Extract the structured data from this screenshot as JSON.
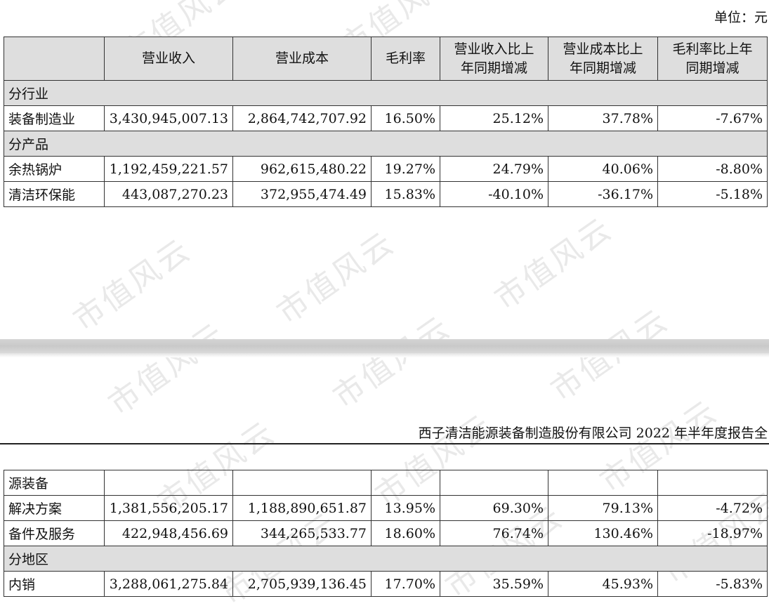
{
  "unit_label": "单位：元",
  "report_title": "西子清洁能源装备制造股份有限公司 2022 年半年度报告全",
  "watermark": "市值风云",
  "table1": {
    "headers": [
      "",
      "营业收入",
      "营业成本",
      "毛利率",
      "营业收入比上年同期增减",
      "营业成本比上年同期增减",
      "毛利率比上年同期增减"
    ],
    "header_lines": [
      [
        ""
      ],
      [
        "营业收入"
      ],
      [
        "营业成本"
      ],
      [
        "毛利率"
      ],
      [
        "营业收入比上",
        "年同期增减"
      ],
      [
        "营业成本比上",
        "年同期增减"
      ],
      [
        "毛利率比上年",
        "同期增减"
      ]
    ],
    "rows": [
      {
        "section": "分行业"
      },
      {
        "cells": [
          "装备制造业",
          "3,430,945,007.13",
          "2,864,742,707.92",
          "16.50%",
          "25.12%",
          "37.78%",
          "-7.67%"
        ]
      },
      {
        "section": "分产品"
      },
      {
        "cells": [
          "余热锅炉",
          "1,192,459,221.57",
          "962,615,480.22",
          "19.27%",
          "24.79%",
          "40.06%",
          "-8.80%"
        ]
      },
      {
        "cells": [
          "清洁环保能",
          "443,087,270.23",
          "372,955,474.49",
          "15.83%",
          "-40.10%",
          "-36.17%",
          "-5.18%"
        ]
      }
    ]
  },
  "table2": {
    "rows": [
      {
        "cells": [
          "源装备",
          "",
          "",
          "",
          "",
          "",
          ""
        ]
      },
      {
        "cells": [
          "解决方案",
          "1,381,556,205.17",
          "1,188,890,651.87",
          "13.95%",
          "69.30%",
          "79.13%",
          "-4.72%"
        ]
      },
      {
        "cells": [
          "备件及服务",
          "422,948,456.69",
          "344,265,533.77",
          "18.60%",
          "76.74%",
          "130.46%",
          "-18.97%"
        ]
      },
      {
        "section": "分地区"
      },
      {
        "cells": [
          "内销",
          "3,288,061,275.84",
          "2,705,939,136.45",
          "17.70%",
          "35.59%",
          "45.93%",
          "-5.83%"
        ]
      }
    ]
  }
}
